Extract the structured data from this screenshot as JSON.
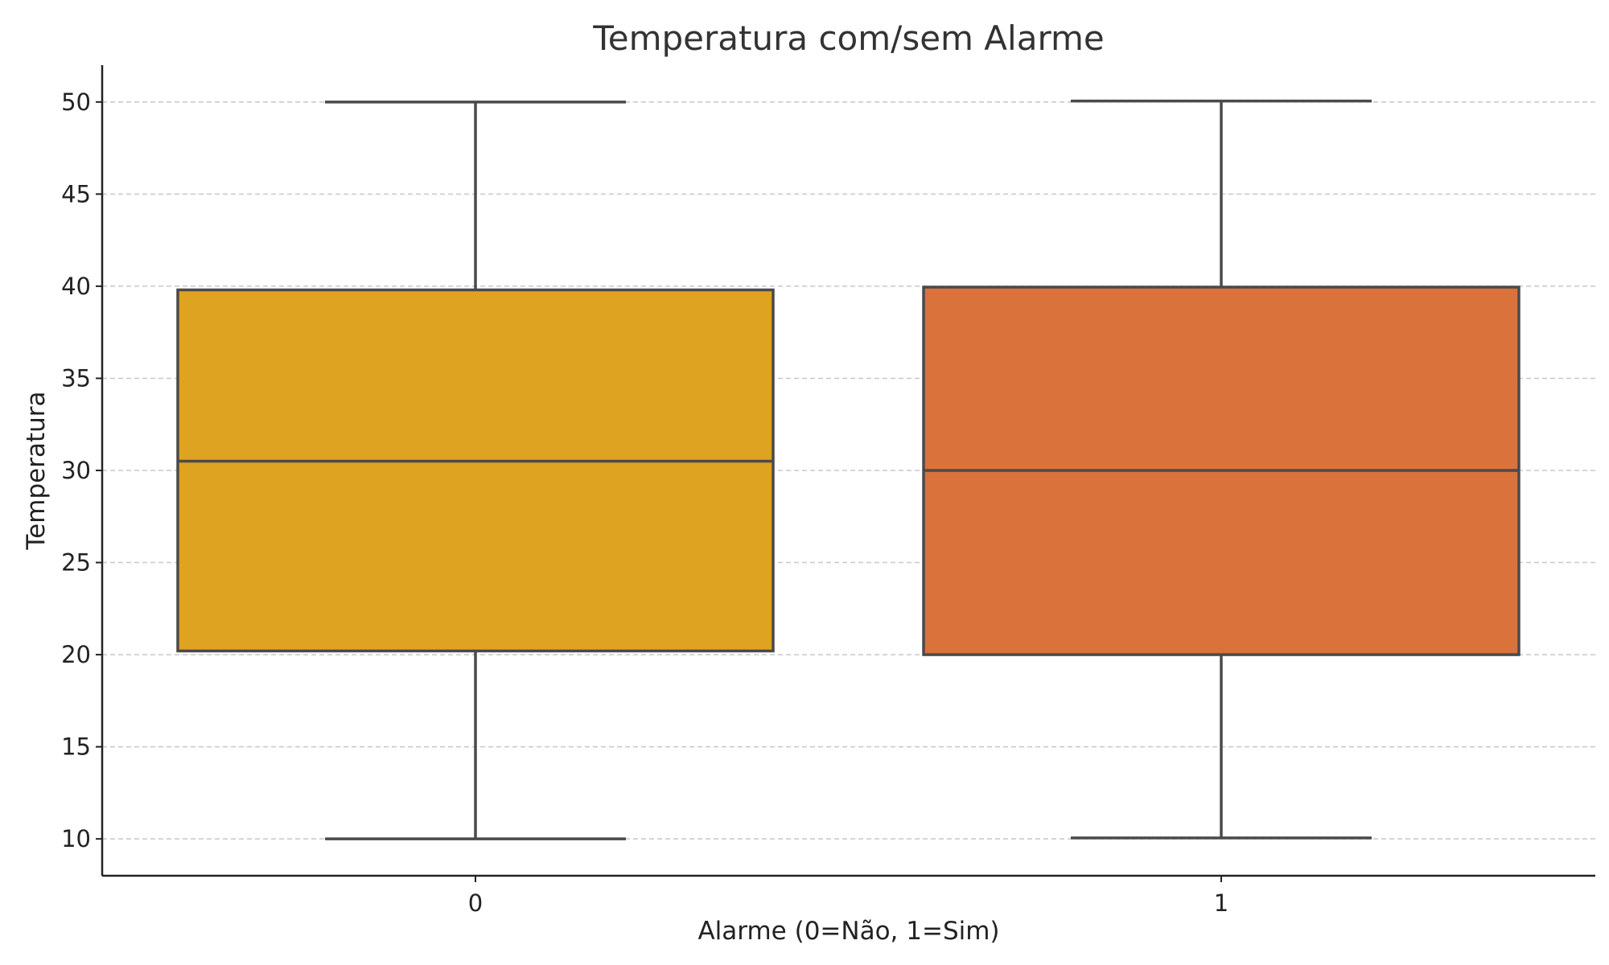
{
  "chart_data": {
    "type": "box",
    "title": "Temperatura com/sem Alarme",
    "xlabel": "Alarme (0=Não, 1=Sim)",
    "ylabel": "Temperatura",
    "ylim": [
      8,
      52
    ],
    "yticks": [
      10,
      15,
      20,
      25,
      30,
      35,
      40,
      45,
      50
    ],
    "grid": "y-dashed",
    "categories": [
      "0",
      "1"
    ],
    "boxes": [
      {
        "category": "0",
        "min": 10.0,
        "q1": 20.2,
        "median": 30.5,
        "q3": 39.8,
        "max": 50.0,
        "color": "#DFA322"
      },
      {
        "category": "1",
        "min": 10.05,
        "q1": 20.0,
        "median": 30.0,
        "q3": 39.95,
        "max": 50.05,
        "color": "#DA723C"
      }
    ]
  }
}
